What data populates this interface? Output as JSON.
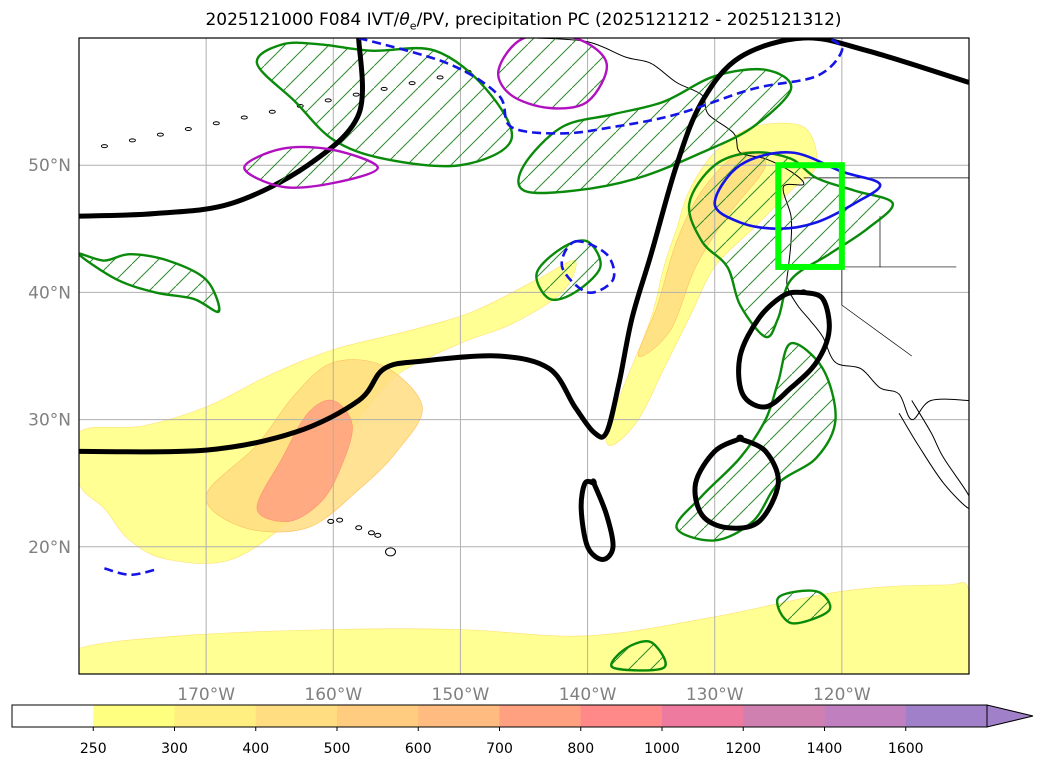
{
  "chart_data": {
    "type": "map-contour",
    "title": "2025121000 F084 IVT/θe/PV, precipitation PC (2025121212 - 2025121312)",
    "title_parts": {
      "prefix": "2025121000 F084 IVT/",
      "theta": "θ",
      "subscript": "e",
      "suffix": "/PV, precipitation PC (2025121212 - 2025121312)"
    },
    "projection": "PlateCarree",
    "lon_range": [
      -180,
      -110
    ],
    "lat_range": [
      10,
      60
    ],
    "x_ticks": [
      -170,
      -160,
      -150,
      -140,
      -130,
      -120
    ],
    "x_tick_labels": [
      "170°W",
      "160°W",
      "150°W",
      "140°W",
      "130°W",
      "120°W"
    ],
    "y_ticks": [
      20,
      30,
      40,
      50
    ],
    "y_tick_labels": [
      "20°N",
      "30°N",
      "40°N",
      "50°N"
    ],
    "grid": true,
    "colorbar": {
      "orientation": "horizontal",
      "extend": "max",
      "levels": [
        250,
        300,
        400,
        500,
        600,
        700,
        800,
        1000,
        1200,
        1400,
        1600
      ],
      "level_labels": [
        "250",
        "300",
        "400",
        "500",
        "600",
        "700",
        "800",
        "1000",
        "1200",
        "1400",
        "1600"
      ],
      "colors": [
        "#ffffff",
        "#ffff80",
        "#ffee80",
        "#ffdd80",
        "#ffcc80",
        "#ffbb80",
        "#ffa080",
        "#ff8888",
        "#ee7aa0",
        "#d080b0",
        "#c080c0",
        "#a080c8"
      ]
    },
    "ivt_regions": [
      {
        "name": "subtropical-plume",
        "outer": [
          [
            -180,
            29
          ],
          [
            -175,
            29.5
          ],
          [
            -170,
            31
          ],
          [
            -165,
            33.5
          ],
          [
            -160,
            35.5
          ],
          [
            -154,
            37
          ],
          [
            -149,
            38.5
          ],
          [
            -144,
            41
          ],
          [
            -141,
            42.5
          ],
          [
            -142,
            40
          ],
          [
            -146,
            37.5
          ],
          [
            -150,
            36
          ],
          [
            -155,
            33.5
          ],
          [
            -158,
            30
          ],
          [
            -160,
            26.5
          ],
          [
            -163,
            22.5
          ],
          [
            -168,
            19
          ],
          [
            -173,
            19
          ],
          [
            -176,
            20.5
          ],
          [
            -178,
            23
          ],
          [
            -180,
            25
          ]
        ],
        "mid": [
          [
            -170,
            24
          ],
          [
            -166,
            28
          ],
          [
            -163,
            32
          ],
          [
            -160,
            34.5
          ],
          [
            -156,
            34.2
          ],
          [
            -153,
            31
          ],
          [
            -155,
            27.5
          ],
          [
            -158,
            24.5
          ],
          [
            -162,
            21.5
          ],
          [
            -167,
            21.5
          ]
        ],
        "core": [
          [
            -166,
            23
          ],
          [
            -164,
            27
          ],
          [
            -162,
            30.5
          ],
          [
            -160,
            31.5
          ],
          [
            -158.5,
            29.5
          ],
          [
            -159.5,
            26
          ],
          [
            -161,
            23.5
          ],
          [
            -163.5,
            22
          ]
        ]
      },
      {
        "name": "pacific-northwest-river",
        "outer": [
          [
            -138.5,
            29
          ],
          [
            -137,
            33
          ],
          [
            -135,
            38
          ],
          [
            -134,
            42
          ],
          [
            -133,
            45
          ],
          [
            -132,
            48
          ],
          [
            -130,
            51
          ],
          [
            -127,
            53
          ],
          [
            -123,
            53
          ],
          [
            -122,
            50
          ],
          [
            -124,
            48
          ],
          [
            -127,
            45
          ],
          [
            -130,
            42
          ],
          [
            -132,
            38
          ],
          [
            -134,
            34
          ],
          [
            -136,
            30
          ],
          [
            -138,
            28
          ]
        ],
        "mid": [
          [
            -136,
            35
          ],
          [
            -134.5,
            39
          ],
          [
            -133,
            44
          ],
          [
            -131,
            48
          ],
          [
            -128,
            51
          ],
          [
            -126,
            50
          ],
          [
            -129,
            46
          ],
          [
            -131.5,
            42
          ],
          [
            -133.5,
            37
          ]
        ]
      },
      {
        "name": "southern-band",
        "outer": [
          [
            -180,
            12
          ],
          [
            -172,
            13
          ],
          [
            -160,
            13.5
          ],
          [
            -150,
            13.5
          ],
          [
            -140,
            13
          ],
          [
            -130,
            14.5
          ],
          [
            -120,
            16.5
          ],
          [
            -112,
            17
          ],
          [
            -110,
            16.5
          ],
          [
            -110,
            10
          ],
          [
            -180,
            10
          ]
        ]
      }
    ],
    "theta_e_lines": [
      {
        "name": "theta-e-nw-arc",
        "points": [
          [
            -180,
            46
          ],
          [
            -174,
            46.2
          ],
          [
            -168,
            47
          ],
          [
            -162,
            50
          ],
          [
            -158,
            54
          ],
          [
            -158,
            60
          ]
        ]
      },
      {
        "name": "theta-e-main",
        "points": [
          [
            -180,
            27.5
          ],
          [
            -170,
            27.6
          ],
          [
            -163,
            29
          ],
          [
            -158,
            31.5
          ],
          [
            -156,
            34
          ],
          [
            -153,
            34.6
          ],
          [
            -147,
            35
          ],
          [
            -143,
            34
          ],
          [
            -141,
            31
          ],
          [
            -139.5,
            29
          ],
          [
            -138.5,
            29
          ],
          [
            -137.5,
            33
          ],
          [
            -136.5,
            38
          ],
          [
            -135,
            43
          ],
          [
            -133,
            50
          ],
          [
            -131,
            55
          ],
          [
            -128,
            58.5
          ],
          [
            -123,
            60
          ],
          [
            -118,
            59
          ],
          [
            -110,
            56.5
          ]
        ]
      },
      {
        "name": "theta-e-loop-ca",
        "points": [
          [
            -123,
            40
          ],
          [
            -121.5,
            39.5
          ],
          [
            -121,
            37
          ],
          [
            -122,
            34.5
          ],
          [
            -124,
            32.5
          ],
          [
            -126,
            31
          ],
          [
            -127.8,
            32
          ],
          [
            -128,
            35
          ],
          [
            -126.5,
            38
          ],
          [
            -124.5,
            39.8
          ],
          [
            -123,
            40
          ]
        ]
      },
      {
        "name": "theta-e-loop-baja",
        "points": [
          [
            -128,
            28.5
          ],
          [
            -126,
            27.5
          ],
          [
            -125,
            25
          ],
          [
            -126.5,
            22
          ],
          [
            -129,
            21.5
          ],
          [
            -131,
            22.5
          ],
          [
            -131.5,
            25
          ],
          [
            -130,
            27.5
          ],
          [
            -128,
            28.5
          ]
        ]
      },
      {
        "name": "theta-e-loop-south",
        "points": [
          [
            -139.5,
            25
          ],
          [
            -138.5,
            22.5
          ],
          [
            -138,
            20
          ],
          [
            -138.8,
            19
          ],
          [
            -140,
            20
          ],
          [
            -140.5,
            23
          ],
          [
            -140.2,
            25
          ],
          [
            -139.5,
            25
          ]
        ]
      }
    ],
    "precip_contours": [
      {
        "name": "precip-aleutian",
        "points": [
          [
            -166,
            58
          ],
          [
            -163,
            55
          ],
          [
            -160,
            52
          ],
          [
            -156,
            50.5
          ],
          [
            -150,
            50
          ],
          [
            -146,
            52
          ],
          [
            -148,
            56
          ],
          [
            -152,
            59
          ],
          [
            -157,
            59
          ],
          [
            -161,
            59.5
          ],
          [
            -164,
            59.5
          ]
        ]
      },
      {
        "name": "precip-gulf-alaska",
        "points": [
          [
            -145,
            50
          ],
          [
            -142,
            53
          ],
          [
            -138,
            54
          ],
          [
            -134,
            55
          ],
          [
            -130,
            57
          ],
          [
            -126,
            57.5
          ],
          [
            -124,
            56
          ],
          [
            -127,
            53
          ],
          [
            -131,
            51
          ],
          [
            -136,
            49
          ],
          [
            -141,
            48
          ],
          [
            -145,
            48
          ]
        ]
      },
      {
        "name": "precip-pnw",
        "points": [
          [
            -132,
            47
          ],
          [
            -130,
            50
          ],
          [
            -127,
            51
          ],
          [
            -124,
            50.5
          ],
          [
            -122,
            49
          ],
          [
            -119,
            48
          ],
          [
            -116,
            47
          ],
          [
            -118,
            45
          ],
          [
            -121,
            43
          ],
          [
            -124,
            41
          ],
          [
            -125,
            38
          ],
          [
            -126,
            36.5
          ],
          [
            -128,
            39
          ],
          [
            -129,
            42
          ],
          [
            -131,
            44
          ]
        ]
      },
      {
        "name": "precip-west-pacific",
        "points": [
          [
            -180,
            43
          ],
          [
            -177,
            41
          ],
          [
            -174,
            40
          ],
          [
            -171,
            39.5
          ],
          [
            -169,
            38.5
          ],
          [
            -170,
            41
          ],
          [
            -173,
            42.5
          ],
          [
            -176,
            43
          ],
          [
            -178,
            42.5
          ]
        ]
      },
      {
        "name": "precip-mid-east",
        "points": [
          [
            -142,
            43.5
          ],
          [
            -140,
            44
          ],
          [
            -139,
            42
          ],
          [
            -141,
            40
          ],
          [
            -143,
            39.5
          ],
          [
            -144,
            41.5
          ]
        ]
      },
      {
        "name": "precip-baja",
        "points": [
          [
            -124,
            36
          ],
          [
            -121.5,
            34
          ],
          [
            -120.5,
            30
          ],
          [
            -122,
            27
          ],
          [
            -125,
            25
          ],
          [
            -127,
            22
          ],
          [
            -130,
            20.5
          ],
          [
            -133,
            21.5
          ],
          [
            -131,
            24
          ],
          [
            -128,
            27
          ],
          [
            -126,
            30
          ],
          [
            -125,
            33
          ]
        ]
      },
      {
        "name": "precip-small-s",
        "points": [
          [
            -125,
            16
          ],
          [
            -122,
            16.5
          ],
          [
            -121,
            15
          ],
          [
            -124,
            14
          ]
        ]
      },
      {
        "name": "precip-south-band",
        "points": [
          [
            -137,
            12
          ],
          [
            -135,
            12.5
          ],
          [
            -134,
            10.5
          ],
          [
            -138,
            10.5
          ]
        ]
      }
    ],
    "pv_contours": [
      {
        "name": "pv-gulf-north",
        "points": [
          [
            -158,
            60
          ],
          [
            -151,
            58
          ],
          [
            -147,
            55.5
          ],
          [
            -146,
            53
          ],
          [
            -142,
            52.5
          ],
          [
            -138,
            53
          ],
          [
            -133,
            54
          ],
          [
            -127,
            56
          ],
          [
            -122,
            57
          ],
          [
            -120,
            59
          ],
          [
            -121,
            60
          ]
        ]
      },
      {
        "name": "pv-offshore-40n",
        "points": [
          [
            -141,
            44
          ],
          [
            -138.5,
            43
          ],
          [
            -138,
            41
          ],
          [
            -140,
            40
          ],
          [
            -142,
            42
          ]
        ]
      },
      {
        "name": "pv-wa-coast",
        "points": [
          [
            -130,
            47
          ],
          [
            -128,
            50
          ],
          [
            -124,
            51
          ],
          [
            -120,
            49.5
          ],
          [
            -117,
            48.5
          ],
          [
            -119,
            47
          ],
          [
            -122,
            45.5
          ],
          [
            -125,
            45
          ],
          [
            -128,
            45.5
          ]
        ]
      },
      {
        "name": "pv-west-dash",
        "points": [
          [
            -178,
            18.3
          ],
          [
            -176,
            17.8
          ],
          [
            -174,
            18.2
          ]
        ]
      }
    ],
    "highlight_box": {
      "lon": [
        -125,
        -120
      ],
      "lat": [
        42,
        50
      ],
      "color": "#00ff00"
    },
    "x_unit": "degrees longitude",
    "y_unit": "degrees latitude"
  }
}
